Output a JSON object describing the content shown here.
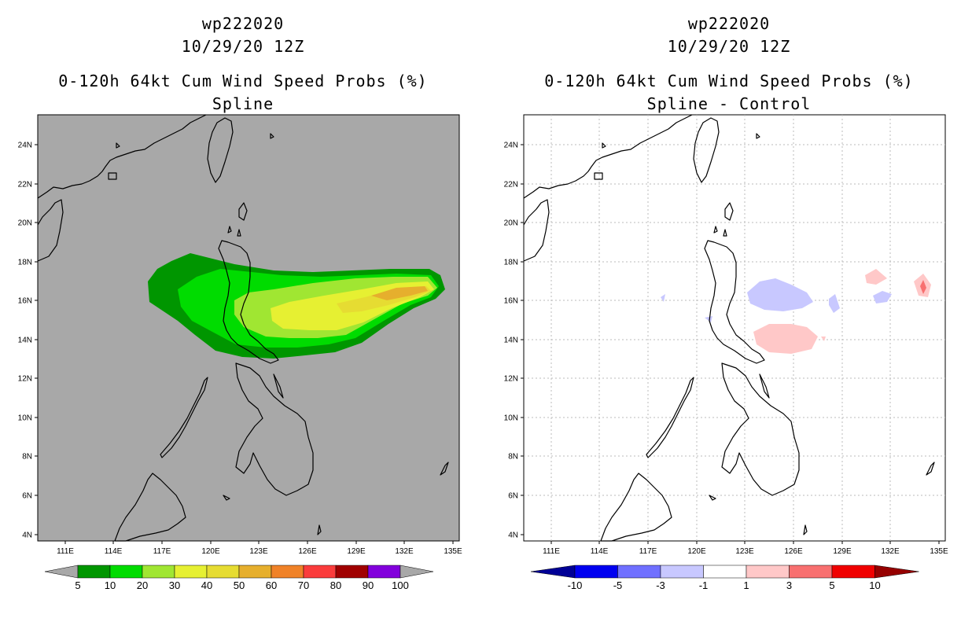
{
  "left_panel": {
    "title_lines": [
      "wp222020",
      "10/29/20 12Z",
      "0-120h 64kt Cum Wind Speed Probs (%)",
      "Spline"
    ],
    "background": "#a8a8a8",
    "colorbar": {
      "labels": [
        "5",
        "10",
        "20",
        "30",
        "40",
        "50",
        "60",
        "70",
        "80",
        "90",
        "100"
      ],
      "colors": [
        "#009600",
        "#00dc00",
        "#a0e632",
        "#e6f032",
        "#e6dc32",
        "#e6af2d",
        "#f08228",
        "#fa3c3c",
        "#a00000",
        "#8200dc"
      ],
      "end_color": "#a8a8a8"
    }
  },
  "right_panel": {
    "title_lines": [
      "wp222020",
      "10/29/20 12Z",
      "0-120h 64kt Cum Wind Speed Probs (%)",
      "Spline - Control"
    ],
    "background": "#ffffff",
    "colorbar": {
      "labels": [
        "-10",
        "-5",
        "-3",
        "-1",
        "1",
        "3",
        "5",
        "10"
      ],
      "colors": [
        "#0000f0",
        "#7070ff",
        "#c8c8ff",
        "#ffffff",
        "#ffc8c8",
        "#f87070",
        "#f00000"
      ],
      "end_left": "#000096",
      "end_right": "#960000"
    }
  },
  "axes": {
    "lon_labels": [
      "111E",
      "114E",
      "117E",
      "120E",
      "123E",
      "126E",
      "129E",
      "132E",
      "135E"
    ],
    "lat_labels": [
      "4N",
      "6N",
      "8N",
      "10N",
      "12N",
      "14N",
      "16N",
      "18N",
      "20N",
      "22N",
      "24N"
    ]
  }
}
